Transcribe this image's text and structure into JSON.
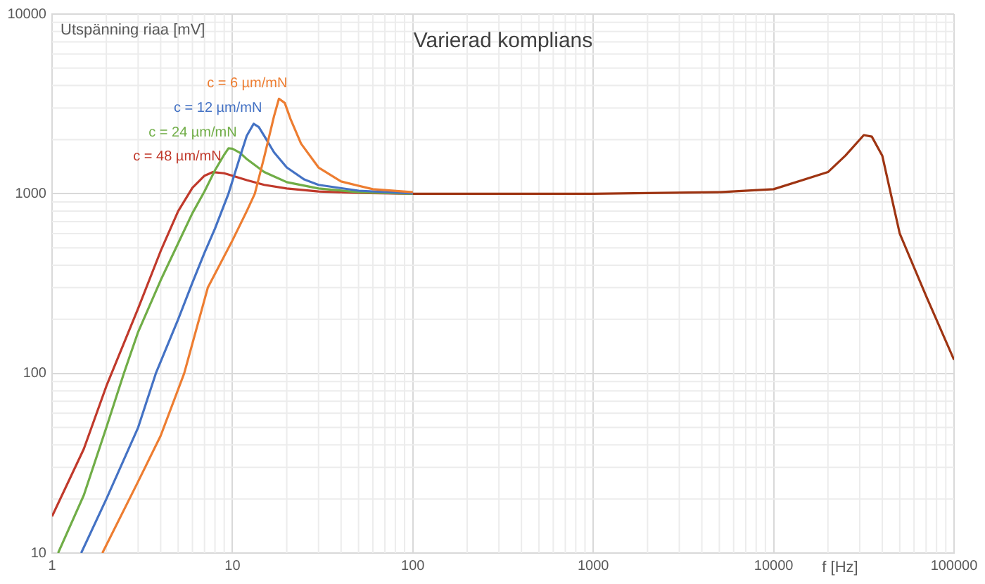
{
  "chart_data": {
    "type": "line",
    "title": "Varierad komplians",
    "ylabel": "Utspänning riaa [mV]",
    "xlabel": "f [Hz]",
    "log": "xy",
    "grid": true,
    "legend": false,
    "marker": "none",
    "line_style": "solid",
    "xlim": [
      1,
      100000
    ],
    "xticks": [
      1,
      10,
      100,
      1000,
      10000,
      100000
    ],
    "ylim": [
      10,
      10000
    ],
    "yticks": [
      10,
      100,
      1000,
      10000
    ],
    "series": [
      {
        "name": "c = 6 µm/mN",
        "color": "#ed7d31",
        "x": [
          1.9,
          3,
          4,
          5.4,
          7.3,
          10,
          12,
          13.3,
          15,
          17,
          18.1,
          19.5,
          21,
          24,
          30,
          40,
          60,
          100
        ],
        "values": [
          10,
          25,
          45,
          100,
          300,
          550,
          800,
          1000,
          1600,
          2700,
          3380,
          3200,
          2600,
          1900,
          1400,
          1170,
          1060,
          1020
        ]
      },
      {
        "name": "c = 12 µm/mN",
        "color": "#4472c4",
        "x": [
          1.45,
          2,
          3,
          3.76,
          5,
          6,
          7,
          8,
          9.5,
          11,
          12,
          13.1,
          14,
          15,
          17,
          20,
          25,
          30,
          50,
          100
        ],
        "values": [
          10,
          20,
          50,
          100,
          200,
          320,
          470,
          640,
          1000,
          1600,
          2100,
          2450,
          2350,
          2100,
          1700,
          1400,
          1200,
          1120,
          1040,
          1005
        ]
      },
      {
        "name": "c = 24 µm/mN",
        "color": "#70ad47",
        "x": [
          1.08,
          1.5,
          2,
          2.5,
          3,
          4,
          5,
          6,
          7,
          8,
          9,
          9.5,
          10,
          11,
          12,
          15,
          20,
          30,
          50,
          100
        ],
        "values": [
          10,
          21,
          50,
          100,
          170,
          330,
          530,
          780,
          1030,
          1350,
          1650,
          1790,
          1780,
          1690,
          1560,
          1320,
          1160,
          1070,
          1020,
          1000
        ]
      },
      {
        "name": "c = 48 µm/mN",
        "color": "#c0392b",
        "x": [
          1,
          1.5,
          2,
          3,
          4,
          5,
          6,
          7,
          7.8,
          9,
          10,
          12,
          15,
          20,
          30,
          50,
          100
        ],
        "values": [
          16,
          38,
          85,
          230,
          480,
          800,
          1080,
          1260,
          1320,
          1300,
          1260,
          1190,
          1120,
          1070,
          1030,
          1010,
          1000
        ]
      },
      {
        "color": "#9e3412",
        "x": [
          100,
          1000,
          5000,
          10000,
          20000,
          25000,
          31600,
          35000,
          40000,
          50000,
          70000,
          100000
        ],
        "values": [
          1000,
          1000,
          1020,
          1060,
          1320,
          1630,
          2120,
          2080,
          1630,
          600,
          270,
          119
        ]
      }
    ]
  }
}
